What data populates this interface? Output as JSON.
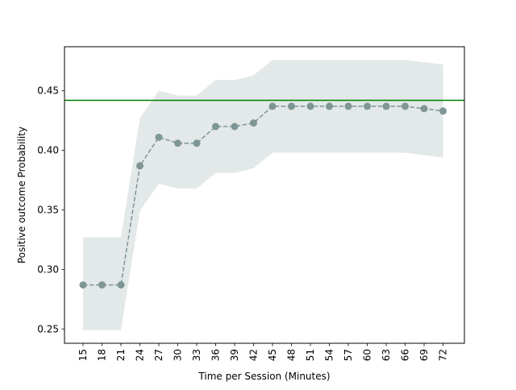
{
  "chart_data": {
    "type": "line",
    "title": "",
    "xlabel": "Time per Session (Minutes)",
    "ylabel": "Positive outcome Probability",
    "categories": [
      "15",
      "18",
      "21",
      "24",
      "27",
      "30",
      "33",
      "36",
      "39",
      "42",
      "45",
      "48",
      "51",
      "54",
      "57",
      "60",
      "63",
      "66",
      "69",
      "72"
    ],
    "series": [
      {
        "values": [
          0.287,
          0.287,
          0.287,
          0.387,
          0.411,
          0.406,
          0.406,
          0.42,
          0.42,
          0.423,
          0.437,
          0.437,
          0.437,
          0.437,
          0.437,
          0.437,
          0.437,
          0.437,
          0.435,
          0.433
        ],
        "lower": [
          0.249,
          0.249,
          0.249,
          0.349,
          0.372,
          0.368,
          0.368,
          0.381,
          0.381,
          0.385,
          0.398,
          0.398,
          0.398,
          0.398,
          0.398,
          0.398,
          0.398,
          0.398,
          0.396,
          0.394
        ],
        "upper": [
          0.327,
          0.327,
          0.327,
          0.427,
          0.45,
          0.446,
          0.446,
          0.459,
          0.459,
          0.463,
          0.476,
          0.476,
          0.476,
          0.476,
          0.476,
          0.476,
          0.476,
          0.476,
          0.474,
          0.472
        ],
        "color": "#7f9696",
        "band_color": "#e3e8e8",
        "line_style": "dashed",
        "marker": "circle"
      }
    ],
    "reference_line": {
      "y": 0.442,
      "color": "#008000"
    },
    "ylim": [
      0.238,
      0.487
    ],
    "yticks": [
      0.25,
      0.3,
      0.35,
      0.4,
      0.45
    ],
    "ytick_labels": [
      "0.25",
      "0.30",
      "0.35",
      "0.40",
      "0.45"
    ],
    "grid": false,
    "legend": "none"
  }
}
